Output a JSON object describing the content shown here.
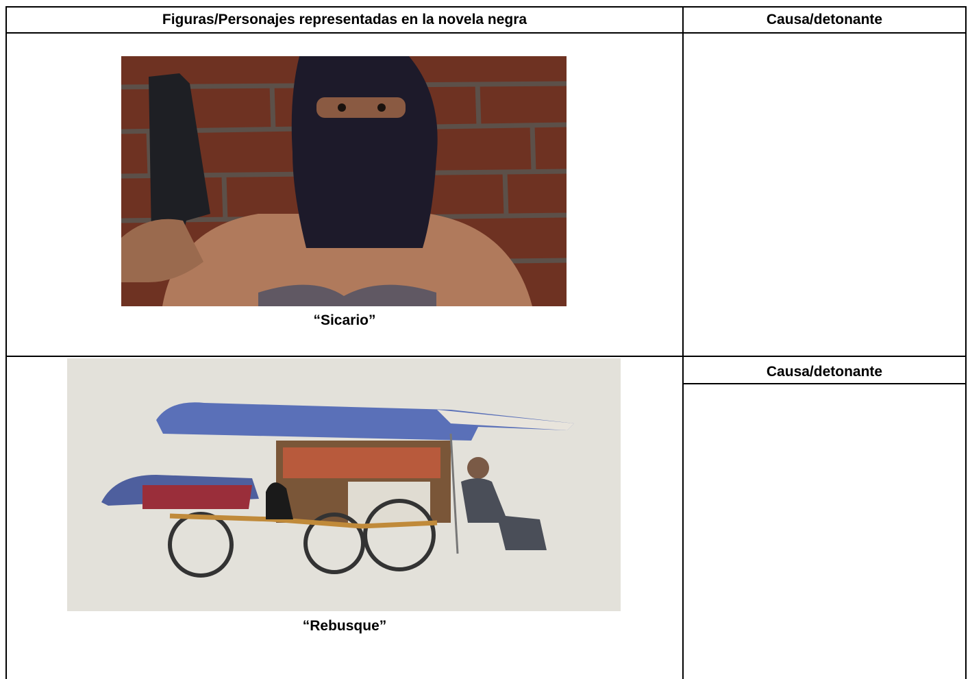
{
  "table": {
    "header": [
      "Figuras/Personajes representadas en la novela negra",
      "Causa/detonante"
    ],
    "rows": [
      {
        "caption": "“Sicario”"
      },
      {
        "caption": "“Rebusque”",
        "side_header": "Causa/detonante"
      }
    ]
  }
}
